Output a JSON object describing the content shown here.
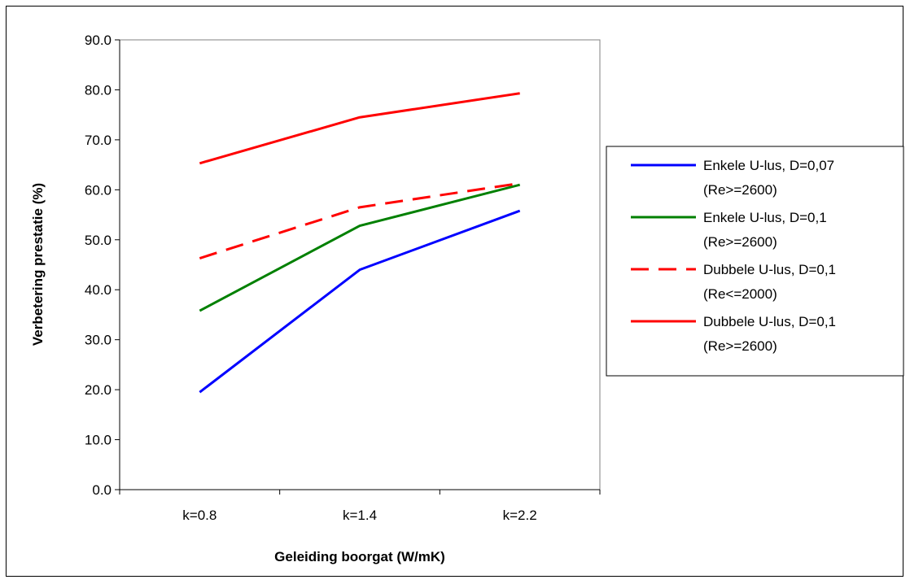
{
  "chart_data": {
    "type": "line",
    "title": "",
    "xlabel": "Geleiding boorgat (W/mK)",
    "ylabel": "Verbetering prestatie (%)",
    "categories": [
      "k=0.8",
      "k=1.4",
      "k=2.2"
    ],
    "ylim": [
      0,
      90
    ],
    "yticks": [
      "0.0",
      "10.0",
      "20.0",
      "30.0",
      "40.0",
      "50.0",
      "60.0",
      "70.0",
      "80.0",
      "90.0"
    ],
    "grid": false,
    "legend_position": "right",
    "series": [
      {
        "name_line1": "Enkele U-lus, D=0,07",
        "name_line2": "(Re>=2600)",
        "values": [
          19.5,
          44.0,
          55.8
        ],
        "color": "#0000ff",
        "dashed": false
      },
      {
        "name_line1": "Enkele U-lus, D=0,1",
        "name_line2": "(Re>=2600)",
        "values": [
          35.8,
          52.8,
          61.0
        ],
        "color": "#008000",
        "dashed": false
      },
      {
        "name_line1": "Dubbele U-lus, D=0,1",
        "name_line2": "(Re<=2000)",
        "values": [
          46.3,
          56.5,
          61.3
        ],
        "color": "#ff0000",
        "dashed": true
      },
      {
        "name_line1": "Dubbele U-lus, D=0,1",
        "name_line2": "(Re>=2600)",
        "values": [
          65.3,
          74.5,
          79.3
        ],
        "color": "#ff0000",
        "dashed": false
      }
    ]
  }
}
